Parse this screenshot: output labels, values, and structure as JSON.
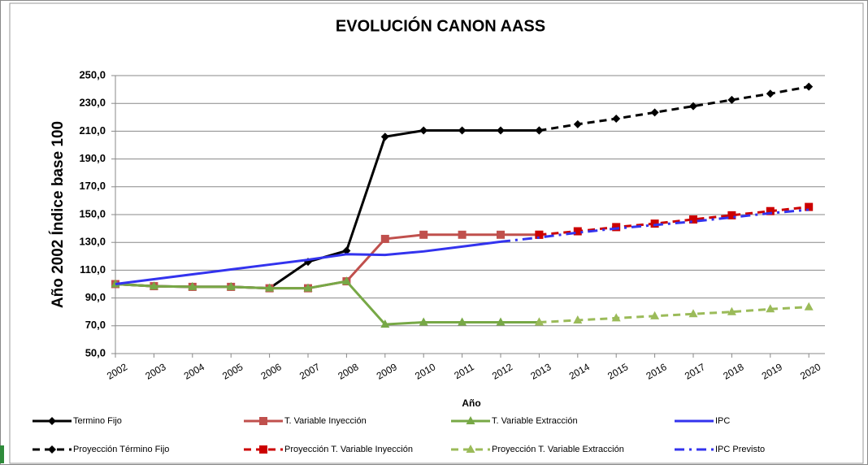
{
  "chart_data": {
    "type": "line",
    "title": "EVOLUCIÓN CANON AASS",
    "x_label": "Año",
    "y_label": "Año 2002 Índice base 100",
    "categories": [
      "2002",
      "2003",
      "2004",
      "2005",
      "2006",
      "2007",
      "2008",
      "2009",
      "2010",
      "2011",
      "2012",
      "2013",
      "2014",
      "2015",
      "2016",
      "2017",
      "2018",
      "2019",
      "2020"
    ],
    "ylim": [
      50,
      250
    ],
    "yticks": [
      {
        "value": 50,
        "label": "50,0"
      },
      {
        "value": 70,
        "label": "70,0"
      },
      {
        "value": 90,
        "label": "90,0"
      },
      {
        "value": 110,
        "label": "110,0"
      },
      {
        "value": 130,
        "label": "130,0"
      },
      {
        "value": 150,
        "label": "150,0"
      },
      {
        "value": 170,
        "label": "170,0"
      },
      {
        "value": 190,
        "label": "190,0"
      },
      {
        "value": 210,
        "label": "210,0"
      },
      {
        "value": 230,
        "label": "230,0"
      },
      {
        "value": 250,
        "label": "250,0"
      }
    ],
    "grid": true,
    "legend": "bottom",
    "series": [
      {
        "name": "Termino Fijo",
        "color": "#000000",
        "dash": "solid",
        "marker": "diamond",
        "values": [
          100,
          98.5,
          98,
          98,
          97,
          116,
          124,
          206,
          210.5,
          210.5,
          210.5,
          210.5,
          null,
          null,
          null,
          null,
          null,
          null,
          null
        ]
      },
      {
        "name": "T. Variable Inyección",
        "color": "#c0504d",
        "dash": "solid",
        "marker": "square",
        "values": [
          100,
          98.5,
          98,
          98,
          97,
          97,
          102,
          132.5,
          135.5,
          135.5,
          135.5,
          135.5,
          null,
          null,
          null,
          null,
          null,
          null,
          null
        ]
      },
      {
        "name": "T. Variable Extracción",
        "color": "#77a846",
        "dash": "solid",
        "marker": "triangle",
        "values": [
          100,
          98.5,
          98,
          98,
          97,
          97,
          102,
          71,
          72.5,
          72.5,
          72.5,
          72.5,
          null,
          null,
          null,
          null,
          null,
          null,
          null
        ]
      },
      {
        "name": "IPC",
        "color": "#3333ee",
        "dash": "solid",
        "marker": "none",
        "values": [
          100,
          103.5,
          107,
          110.5,
          114,
          117.5,
          121.5,
          121,
          123.5,
          127,
          130.5,
          null,
          null,
          null,
          null,
          null,
          null,
          null,
          null
        ]
      },
      {
        "name": "Proyección Término Fijo",
        "color": "#000000",
        "dash": "dash",
        "marker": "diamond",
        "values": [
          null,
          null,
          null,
          null,
          null,
          null,
          null,
          null,
          null,
          null,
          null,
          210.5,
          215,
          219,
          223.5,
          228,
          232.5,
          237,
          242
        ]
      },
      {
        "name": "Proyección T. Variable Inyección",
        "color": "#cc0000",
        "dash": "dash",
        "marker": "square",
        "values": [
          null,
          null,
          null,
          null,
          null,
          null,
          null,
          null,
          null,
          null,
          null,
          135.5,
          138,
          141,
          143.5,
          146.5,
          149.5,
          152.5,
          155.5
        ]
      },
      {
        "name": "Proyección T. Variable Extracción",
        "color": "#9bbb59",
        "dash": "dash",
        "marker": "triangle",
        "values": [
          null,
          null,
          null,
          null,
          null,
          null,
          null,
          null,
          null,
          null,
          null,
          72.5,
          74,
          75.5,
          77,
          78.5,
          80,
          82,
          83.5
        ]
      },
      {
        "name": "IPC Previsto",
        "color": "#3333ee",
        "dash": "dashdot",
        "marker": "none",
        "values": [
          null,
          null,
          null,
          null,
          null,
          null,
          null,
          null,
          null,
          null,
          130.5,
          133.5,
          137,
          140,
          142.5,
          145,
          148,
          151,
          153.5
        ]
      }
    ]
  }
}
